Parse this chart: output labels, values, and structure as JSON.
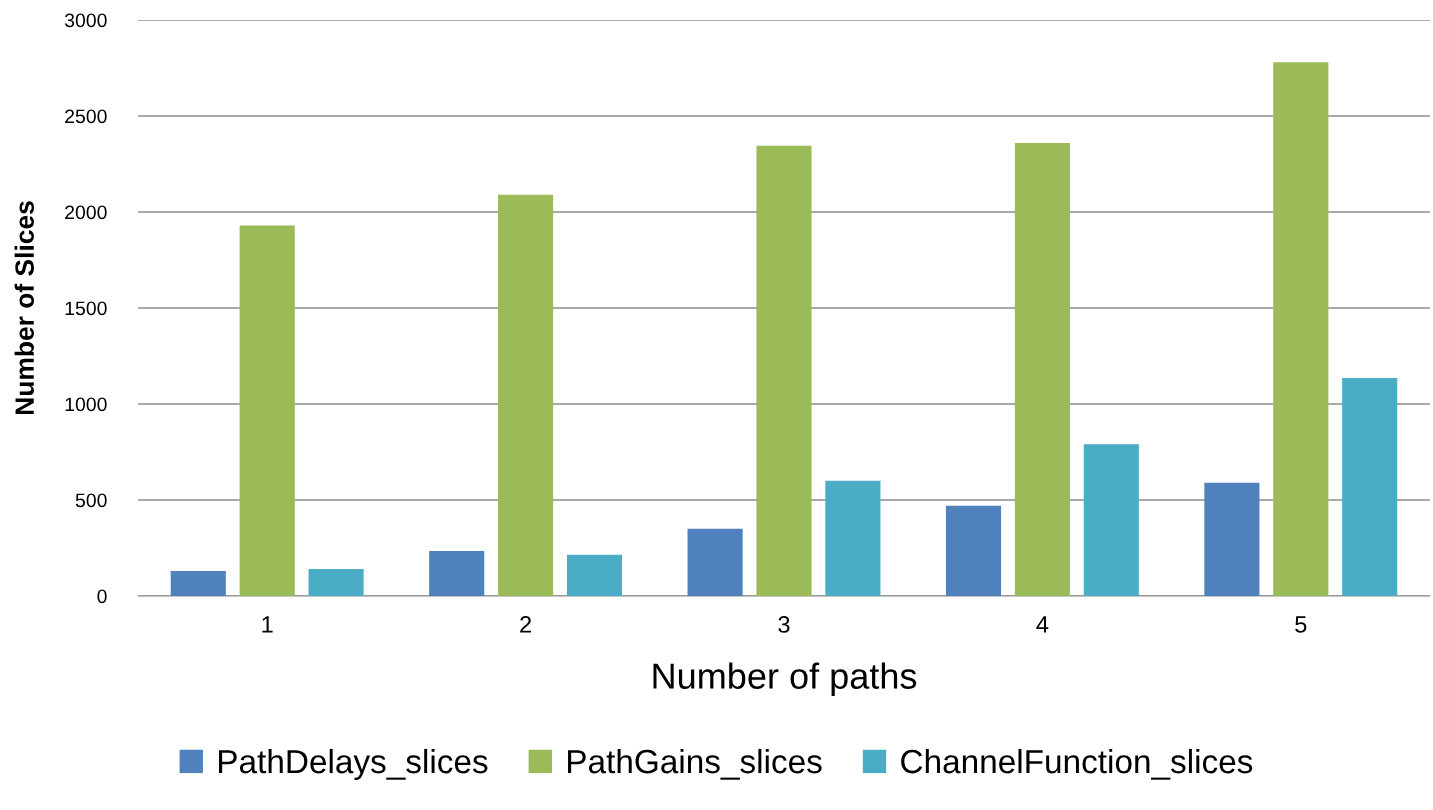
{
  "chart_data": {
    "type": "bar",
    "xlabel": "Number of paths",
    "ylabel": "Number of Slices",
    "categories": [
      "1",
      "2",
      "3",
      "4",
      "5"
    ],
    "series": [
      {
        "name": "PathDelays_slices",
        "color": "#4f81bd",
        "values": [
          130,
          235,
          350,
          470,
          590
        ]
      },
      {
        "name": "PathGains_slices",
        "color": "#9bbb59",
        "values": [
          1930,
          2090,
          2345,
          2360,
          2780
        ]
      },
      {
        "name": "ChannelFunction_slices",
        "color": "#4bacc6",
        "values": [
          140,
          215,
          600,
          790,
          1135
        ]
      }
    ],
    "ylim": [
      0,
      3000
    ],
    "yticks": [
      0,
      500,
      1000,
      1500,
      2000,
      2500,
      3000
    ],
    "grid": "y",
    "legend": "bottom"
  }
}
